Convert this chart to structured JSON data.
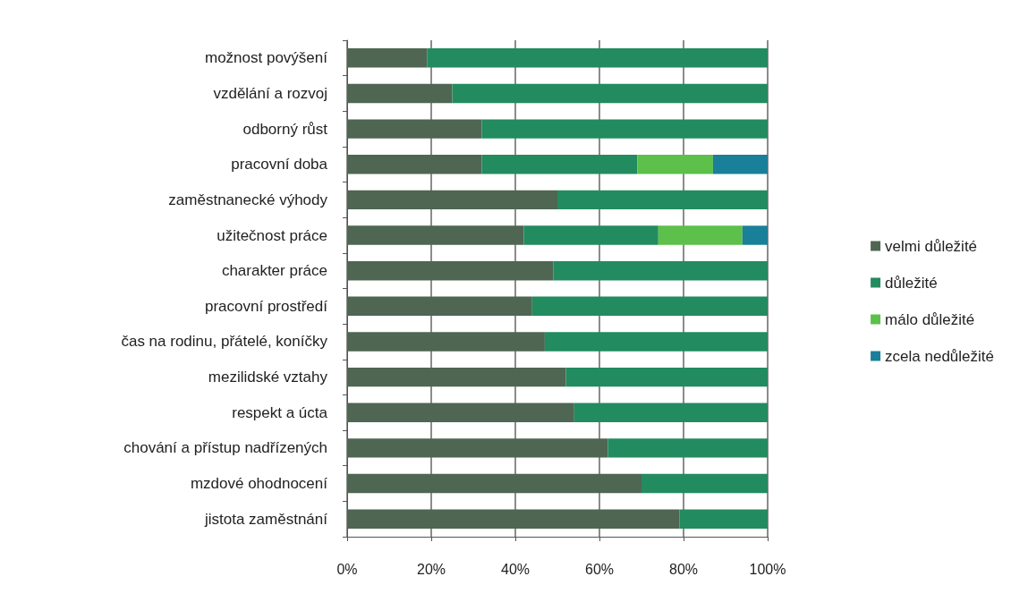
{
  "chart_data": {
    "type": "bar",
    "orientation": "horizontal",
    "stacked": true,
    "categories": [
      "možnost povýšení",
      "vzdělání a rozvoj",
      "odborný růst",
      "pracovní doba",
      "zaměstnanecké výhody",
      "užitečnost práce",
      "charakter práce",
      "pracovní prostředí",
      "čas na rodinu, přátelé, koníčky",
      "mezilidské vztahy",
      "respekt a úcta",
      "chování a přístup nadřízených",
      "mzdové ohodnocení",
      "jistota zaměstnání"
    ],
    "series": [
      {
        "name": "velmi důležité",
        "color": "#4f6652",
        "values": [
          19,
          25,
          32,
          32,
          50,
          42,
          49,
          44,
          47,
          52,
          54,
          62,
          70,
          79
        ]
      },
      {
        "name": "důležité",
        "color": "#228b5f",
        "values": [
          81,
          75,
          68,
          37,
          50,
          32,
          51,
          56,
          53,
          48,
          46,
          38,
          30,
          21
        ]
      },
      {
        "name": "málo důležité",
        "color": "#5cc04a",
        "values": [
          null,
          null,
          null,
          18,
          null,
          20,
          null,
          null,
          null,
          null,
          null,
          null,
          null,
          null
        ]
      },
      {
        "name": "zcela nedůležité",
        "color": "#1a7f99",
        "values": [
          null,
          null,
          null,
          13,
          null,
          6,
          null,
          null,
          null,
          null,
          null,
          null,
          null,
          null
        ]
      }
    ],
    "xlim": [
      0,
      100
    ],
    "xticks": [
      {
        "value": 0,
        "label": "0%"
      },
      {
        "value": 20,
        "label": "20%"
      },
      {
        "value": 40,
        "label": "40%"
      },
      {
        "value": 60,
        "label": "60%"
      },
      {
        "value": 80,
        "label": "80%"
      },
      {
        "value": 100,
        "label": "100%"
      }
    ],
    "grid": "x",
    "legend": "right"
  }
}
